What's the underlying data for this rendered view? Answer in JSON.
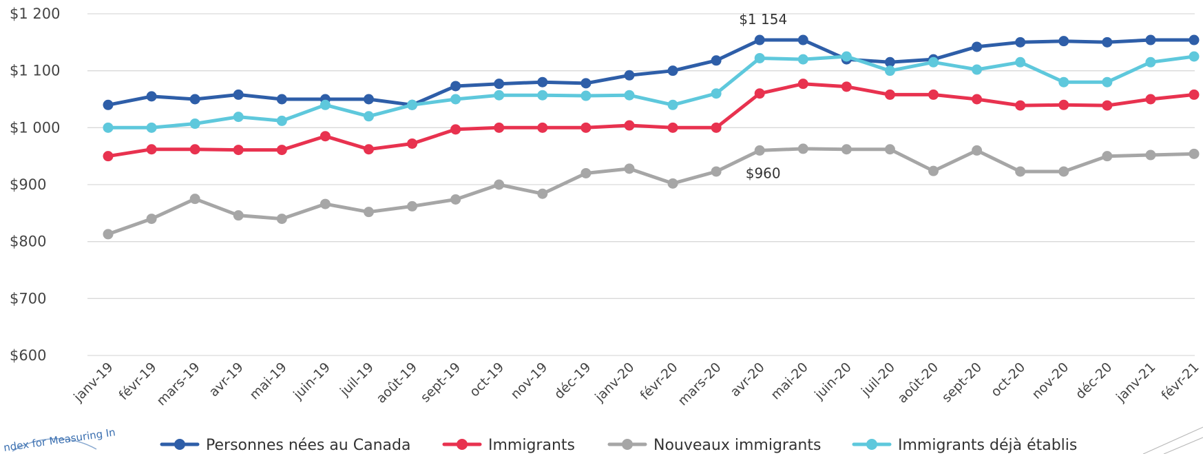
{
  "logo": {
    "text": "ndex for Measuring In"
  },
  "chart_data": {
    "type": "line",
    "title": "",
    "xlabel": "",
    "ylabel": "",
    "ylim": [
      600,
      1200
    ],
    "yticks": [
      {
        "value": 1200,
        "label": "$1 200"
      },
      {
        "value": 1100,
        "label": "$1 100"
      },
      {
        "value": 1000,
        "label": "$1 000"
      },
      {
        "value": 900,
        "label": "$900"
      },
      {
        "value": 800,
        "label": "$800"
      },
      {
        "value": 700,
        "label": "$700"
      },
      {
        "value": 600,
        "label": "$600"
      }
    ],
    "grid": true,
    "legend_position": "bottom",
    "categories": [
      "janv-19",
      "févr-19",
      "mars-19",
      "avr-19",
      "mai-19",
      "juin-19",
      "juil-19",
      "août-19",
      "sept-19",
      "oct-19",
      "nov-19",
      "déc-19",
      "janv-20",
      "févr-20",
      "mars-20",
      "avr-20",
      "mai-20",
      "juin-20",
      "juil-20",
      "août-20",
      "sept-20",
      "oct-20",
      "nov-20",
      "déc-20",
      "janv-21",
      "févr-21"
    ],
    "series": [
      {
        "name": "Personnes nées au Canada",
        "color": "#2e5ea8",
        "values": [
          1040,
          1055,
          1050,
          1058,
          1050,
          1050,
          1050,
          1040,
          1073,
          1077,
          1080,
          1078,
          1092,
          1100,
          1118,
          1154,
          1154,
          1120,
          1115,
          1120,
          1142,
          1150,
          1152,
          1150,
          1154,
          1154
        ]
      },
      {
        "name": "Immigrants",
        "color": "#e8324f",
        "values": [
          950,
          962,
          962,
          961,
          961,
          985,
          962,
          972,
          997,
          1000,
          1000,
          1000,
          1004,
          1000,
          1000,
          1060,
          1077,
          1072,
          1058,
          1058,
          1050,
          1039,
          1040,
          1039,
          1050,
          1058
        ]
      },
      {
        "name": "Nouveaux immigrants",
        "color": "#a6a6a6",
        "values": [
          813,
          840,
          875,
          846,
          840,
          866,
          852,
          862,
          874,
          900,
          884,
          920,
          928,
          902,
          923,
          960,
          963,
          962,
          962,
          924,
          960,
          923,
          923,
          950,
          952,
          954
        ]
      },
      {
        "name": "Immigrants déjà établis",
        "color": "#5ec8dc",
        "values": [
          1000,
          1000,
          1007,
          1019,
          1012,
          1040,
          1020,
          1040,
          1050,
          1057,
          1057,
          1056,
          1057,
          1040,
          1060,
          1122,
          1120,
          1125,
          1100,
          1115,
          1102,
          1115,
          1080,
          1080,
          1115,
          1125
        ]
      }
    ],
    "annotations": [
      {
        "text": "$1 154",
        "category": "avr-20",
        "value": 1154,
        "placement": "above"
      },
      {
        "text": "$960",
        "category": "avr-20",
        "value": 960,
        "placement": "below"
      }
    ]
  }
}
